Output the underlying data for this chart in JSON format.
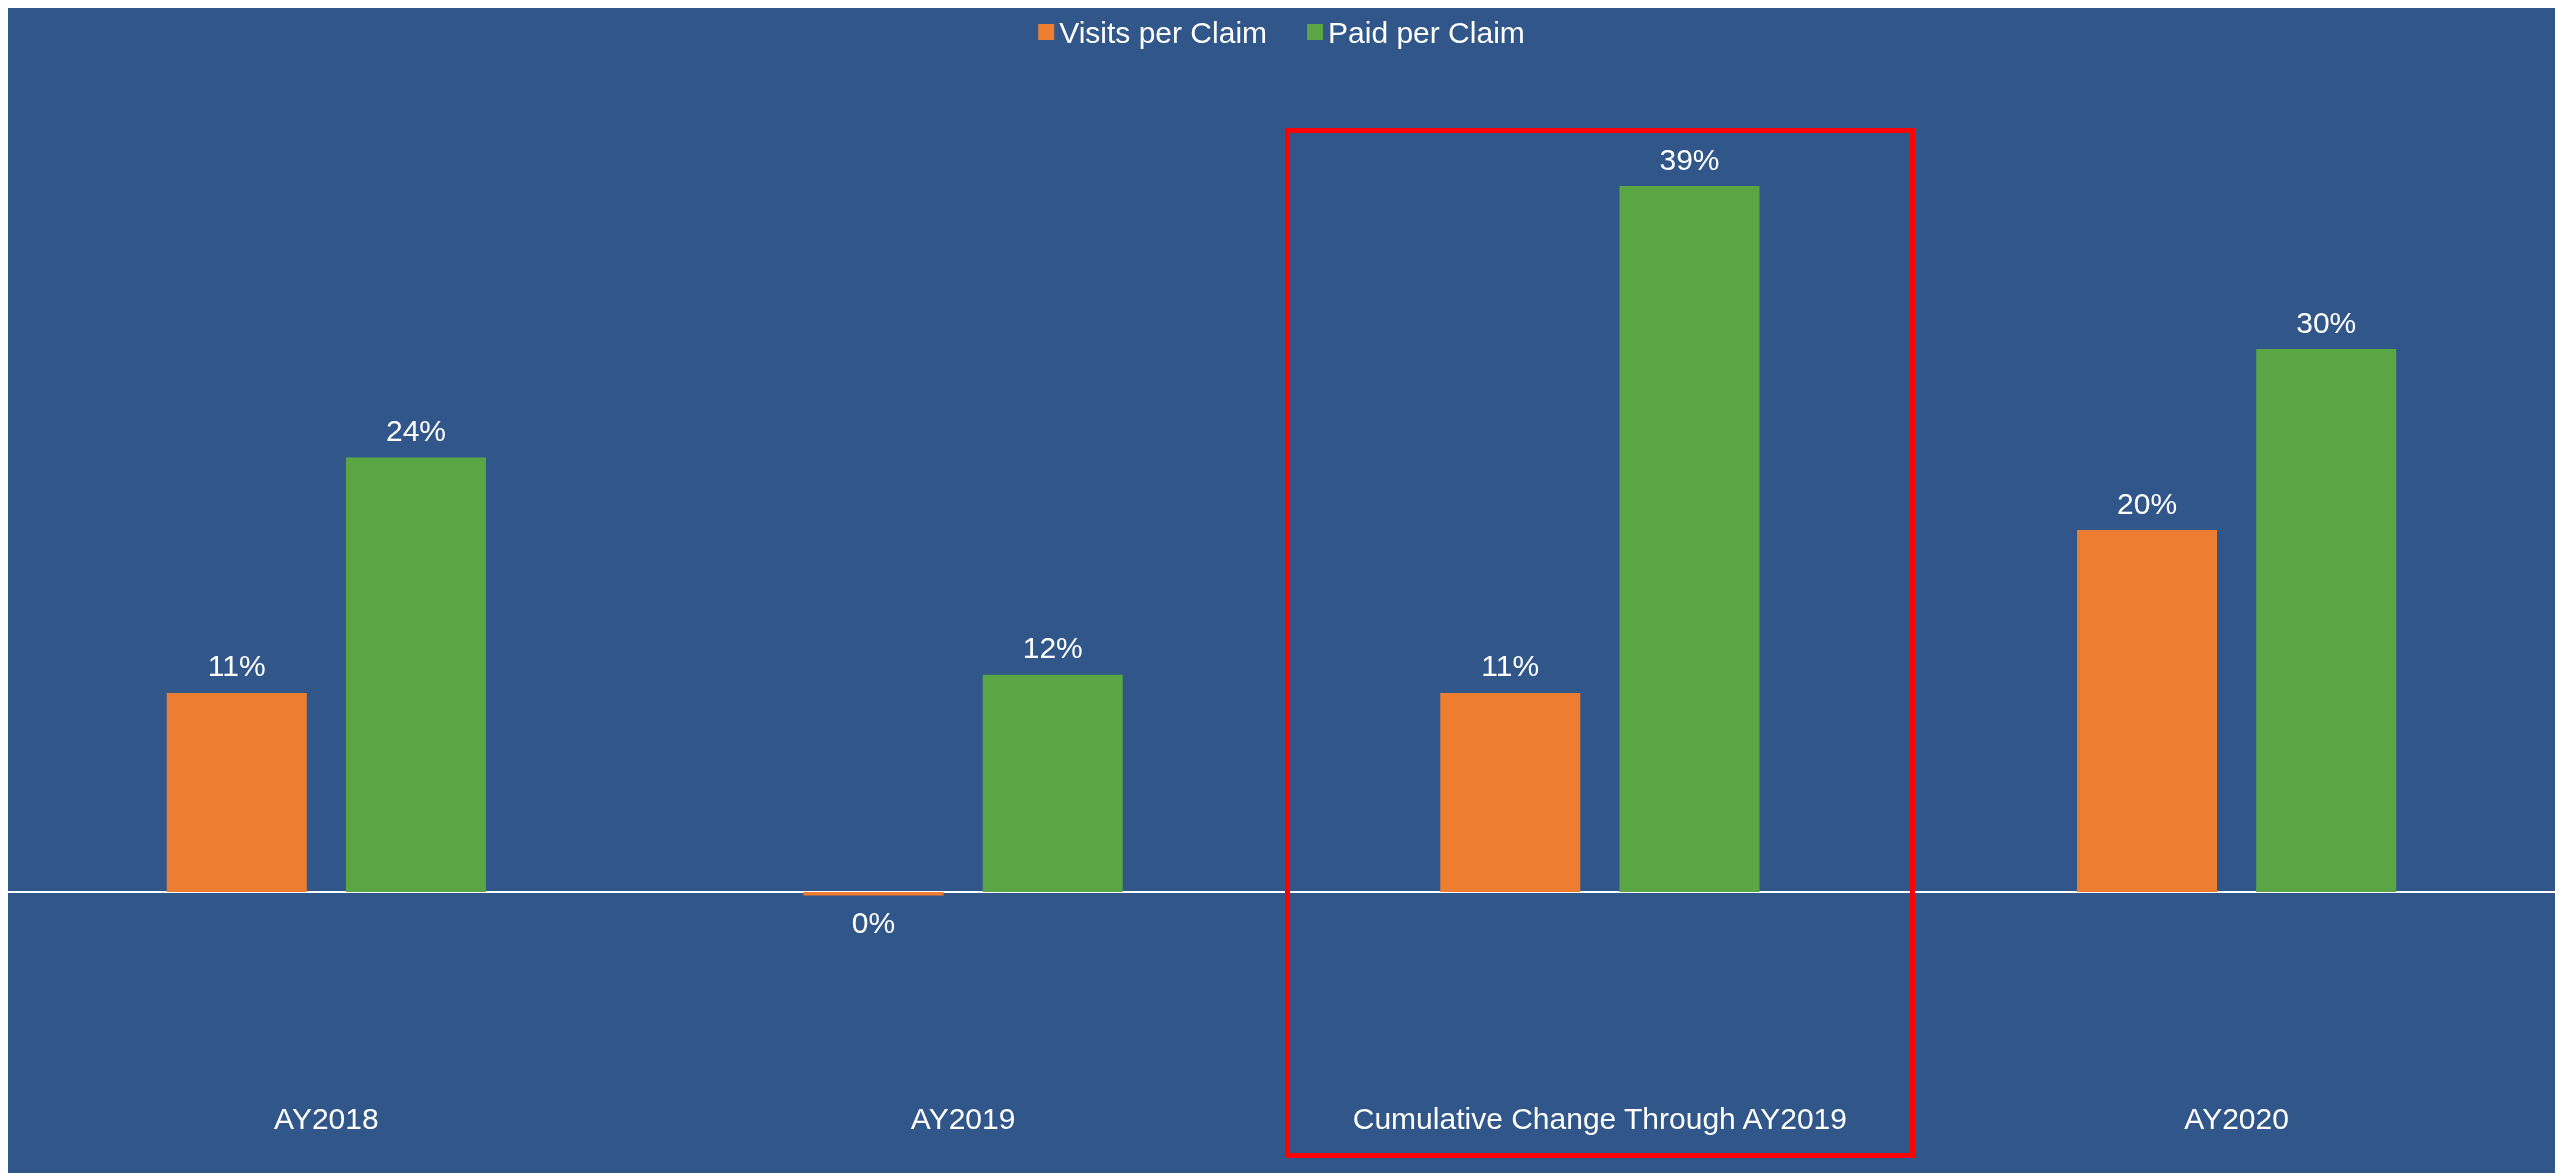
{
  "chart_data": {
    "type": "bar",
    "categories": [
      "AY2018",
      "AY2019",
      "Cumulative Change Through AY2019",
      "AY2020"
    ],
    "series": [
      {
        "name": "Visits per Claim",
        "color": "#ed7d31",
        "values": [
          11,
          -0.2,
          11,
          20
        ],
        "value_labels": [
          "11%",
          "0%",
          "11%",
          "20%"
        ]
      },
      {
        "name": "Paid per Claim",
        "color": "#5aa645",
        "values": [
          24,
          12,
          39,
          30
        ],
        "value_labels": [
          "24%",
          "12%",
          "39%",
          "30%"
        ]
      }
    ],
    "legend": "top"
  }
}
